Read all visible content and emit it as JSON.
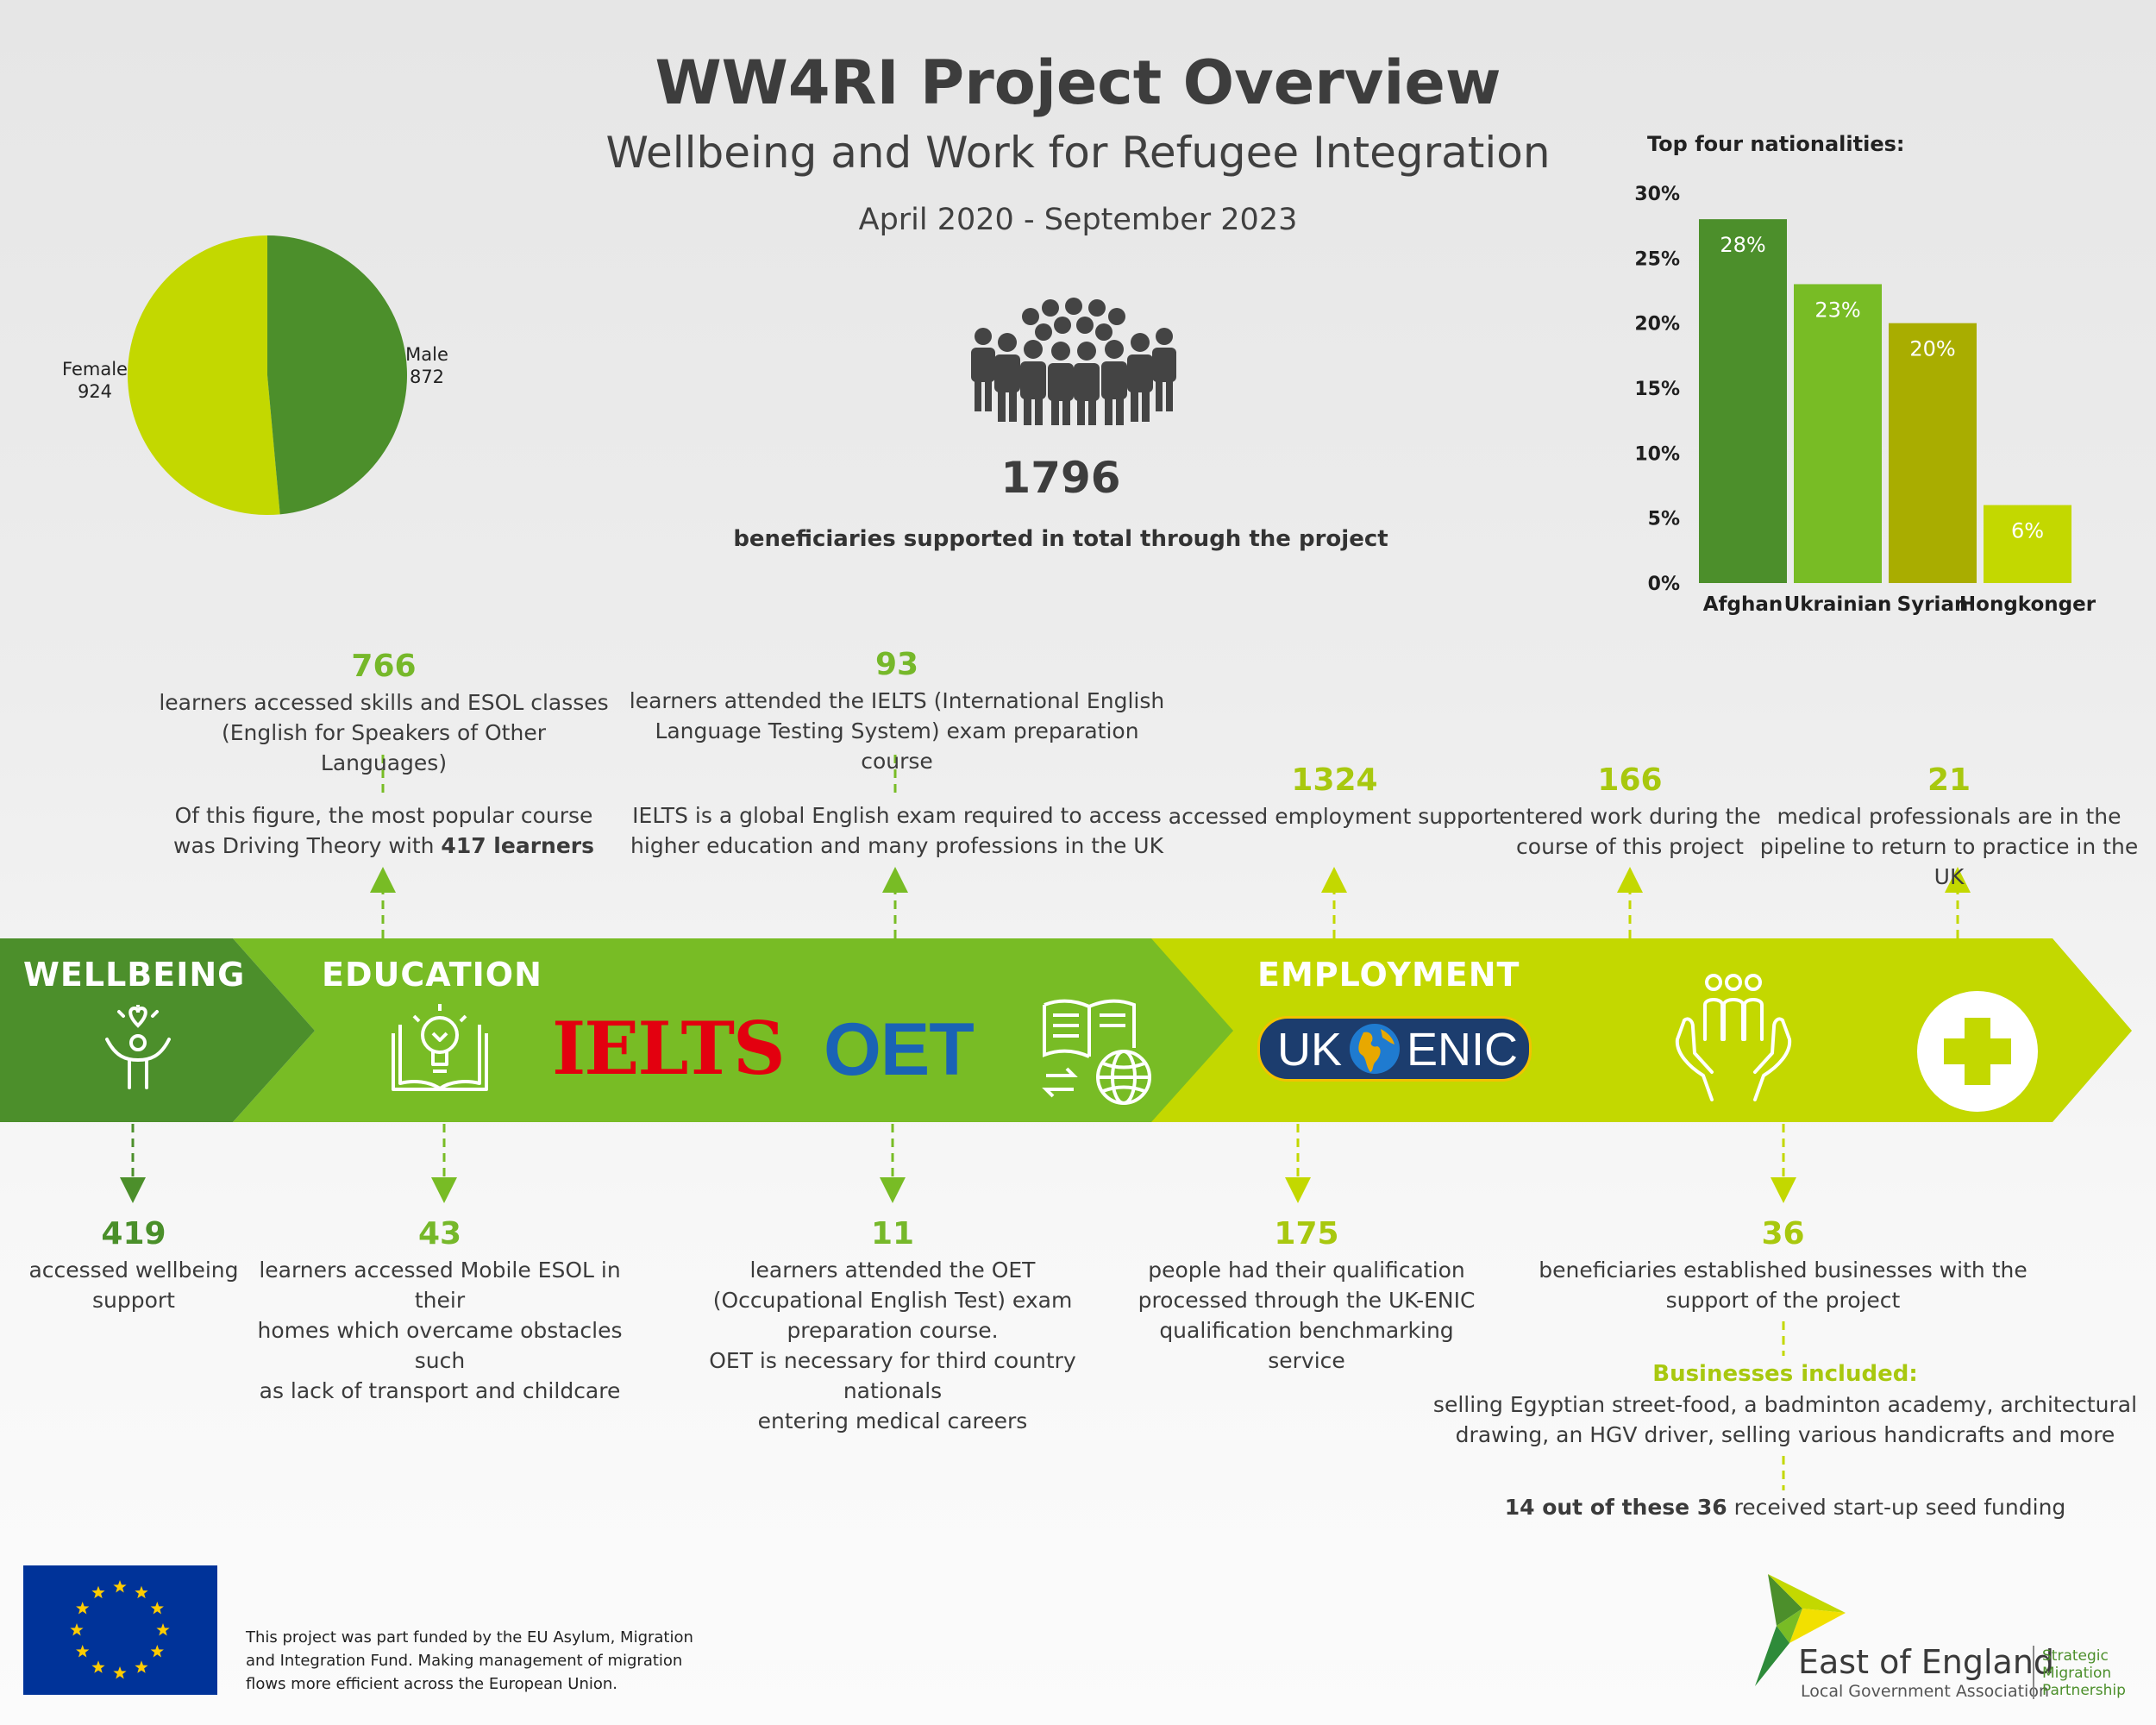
{
  "header": {
    "title": "WW4RI Project Overview",
    "subtitle": "Wellbeing and Work for Refugee Integration",
    "dates": "April 2020 - September 2023"
  },
  "gender": {
    "female_label": "Female",
    "female_value": "924",
    "male_label": "Male",
    "male_value": "872",
    "female": 924,
    "male": 872,
    "colors": {
      "female": "#c3d800",
      "male": "#4c8f2b"
    }
  },
  "total": {
    "number": "1796",
    "caption": "beneficiaries supported in total through the project",
    "icon": "crowd-icon"
  },
  "chart_data": {
    "type": "bar",
    "title": "Top four nationalities:",
    "categories": [
      "Afghan",
      "Ukrainian",
      "Syrian",
      "Hongkonger"
    ],
    "values": [
      28,
      23,
      20,
      6
    ],
    "value_labels": [
      "28%",
      "23%",
      "20%",
      "6%"
    ],
    "ylim": [
      0,
      30
    ],
    "yticks": [
      "0%",
      "5%",
      "10%",
      "15%",
      "20%",
      "25%",
      "30%"
    ],
    "colors": [
      "#4c8f2b",
      "#78bc25",
      "#a9ad00",
      "#c3d800"
    ],
    "grid": false
  },
  "band": {
    "wellbeing": "WELLBEING",
    "education": "EDUCATION",
    "employment": "EMPLOYMENT",
    "ielts_logo": "IELTS",
    "oet_logo": "OET",
    "uk_enic_left": "UK",
    "uk_enic_right": "ENIC"
  },
  "top_stats": {
    "esol": {
      "num": "766",
      "line1": "learners accessed skills and ESOL classes",
      "line2": "(English for Speakers of Other Languages)",
      "sub1": "Of this figure, the most popular course",
      "sub2a": "was Driving Theory with ",
      "sub2b": "417 learners"
    },
    "ielts": {
      "num": "93",
      "line1": "learners attended the IELTS (International English",
      "line2": "Language Testing System) exam preparation course",
      "sub1": "IELTS is a global English exam required to access",
      "sub2": "higher education and many professions in the UK"
    },
    "employment": {
      "num": "1324",
      "line1": "accessed employment support"
    },
    "work": {
      "num": "166",
      "line1": "entered work during the",
      "line2": "course of this project"
    },
    "medical": {
      "num": "21",
      "line1": "medical professionals are in the",
      "line2": "pipeline to return to practice in the UK"
    }
  },
  "bottom_stats": {
    "wellbeing": {
      "num": "419",
      "line1": "accessed wellbeing",
      "line2": "support"
    },
    "mobile": {
      "num": "43",
      "line1": "learners accessed Mobile ESOL in their",
      "line2": "homes which overcame obstacles such",
      "line3": "as lack of transport and childcare"
    },
    "oet": {
      "num": "11",
      "line1": "learners attended the OET",
      "line2": "(Occupational English Test) exam",
      "line3": "preparation course.",
      "line4": "OET is necessary for third country nationals",
      "line5": "entering medical careers"
    },
    "qual": {
      "num": "175",
      "line1": "people had their qualification",
      "line2": "processed through the UK-ENIC",
      "line3": "qualification benchmarking service"
    },
    "business": {
      "num": "36",
      "line1": "beneficiaries established businesses with the",
      "line2": "support of the project",
      "heading": "Businesses included:",
      "list1": "selling Egyptian street-food, a badminton academy, architectural",
      "list2": "drawing,  an HGV driver, selling various handicrafts and more",
      "seed_a": "14 out of these 36",
      "seed_b": " received start-up seed funding"
    }
  },
  "footer": {
    "eu_text1": "This project was part funded by the EU Asylum, Migration",
    "eu_text2": "and Integration Fund. Making management of migration",
    "eu_text3": "flows more efficient across the European Union.",
    "org_name": "East of England",
    "org_sub": "Local Government Association",
    "smp1": "Strategic",
    "smp2": "Migration",
    "smp3": "Partnership"
  }
}
